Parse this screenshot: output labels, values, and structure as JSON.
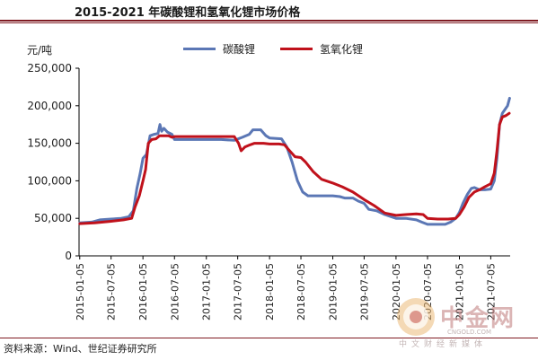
{
  "header": {
    "title": "2015-2021 年碳酸锂和氢氧化锂市场价格"
  },
  "footer": {
    "source": "资料来源：Wind、世纪证券研究所"
  },
  "watermark": {
    "brand": "中金网",
    "domain": "CNGOLD.COM",
    "slogan": "中文财经新媒体"
  },
  "colors": {
    "accent": "#7f1b22",
    "carbonate": "#5b77b5",
    "hydroxide": "#c0111b"
  },
  "chart_data": {
    "type": "line",
    "ylabel": "元/吨",
    "ylim": [
      0,
      250000
    ],
    "yticks": [
      0,
      50000,
      100000,
      150000,
      200000,
      250000
    ],
    "ytick_labels": [
      "0",
      "50,000",
      "100,000",
      "150,000",
      "200,000",
      "250,000"
    ],
    "x_range": [
      "2015-01-01",
      "2021-10-25"
    ],
    "xticks": [
      "2015-01-05",
      "2015-07-05",
      "2016-01-05",
      "2016-07-05",
      "2017-01-05",
      "2017-07-05",
      "2018-01-05",
      "2018-07-05",
      "2019-01-05",
      "2019-07-05",
      "2020-01-05",
      "2020-07-05",
      "2021-01-05",
      "2021-07-05"
    ],
    "grid": false,
    "legend_position": "top",
    "series": [
      {
        "name": "碳酸锂",
        "color": "#5b77b5",
        "points": [
          [
            "2015-01-05",
            44000
          ],
          [
            "2015-03-15",
            45000
          ],
          [
            "2015-05-01",
            48000
          ],
          [
            "2015-07-05",
            49000
          ],
          [
            "2015-09-01",
            50000
          ],
          [
            "2015-10-15",
            52000
          ],
          [
            "2015-11-10",
            60000
          ],
          [
            "2015-12-01",
            90000
          ],
          [
            "2015-12-20",
            110000
          ],
          [
            "2016-01-05",
            130000
          ],
          [
            "2016-01-25",
            135000
          ],
          [
            "2016-02-15",
            160000
          ],
          [
            "2016-03-10",
            162000
          ],
          [
            "2016-04-01",
            163000
          ],
          [
            "2016-04-12",
            175000
          ],
          [
            "2016-04-22",
            166000
          ],
          [
            "2016-05-05",
            170000
          ],
          [
            "2016-05-25",
            165000
          ],
          [
            "2016-06-20",
            162000
          ],
          [
            "2016-07-05",
            155000
          ],
          [
            "2016-09-01",
            155000
          ],
          [
            "2017-01-05",
            155000
          ],
          [
            "2017-04-01",
            155000
          ],
          [
            "2017-06-15",
            154000
          ],
          [
            "2017-08-01",
            158000
          ],
          [
            "2017-09-10",
            162000
          ],
          [
            "2017-10-01",
            168000
          ],
          [
            "2017-11-15",
            168000
          ],
          [
            "2017-12-15",
            160000
          ],
          [
            "2018-01-05",
            157000
          ],
          [
            "2018-03-15",
            156000
          ],
          [
            "2018-04-15",
            145000
          ],
          [
            "2018-05-15",
            125000
          ],
          [
            "2018-06-15",
            100000
          ],
          [
            "2018-07-15",
            85000
          ],
          [
            "2018-08-15",
            80000
          ],
          [
            "2018-10-01",
            80000
          ],
          [
            "2019-01-05",
            80000
          ],
          [
            "2019-02-15",
            79000
          ],
          [
            "2019-03-15",
            77000
          ],
          [
            "2019-05-01",
            77000
          ],
          [
            "2019-06-01",
            73000
          ],
          [
            "2019-07-05",
            70000
          ],
          [
            "2019-08-01",
            62000
          ],
          [
            "2019-09-15",
            60000
          ],
          [
            "2019-11-01",
            55000
          ],
          [
            "2020-01-05",
            50000
          ],
          [
            "2020-03-01",
            50000
          ],
          [
            "2020-05-01",
            48000
          ],
          [
            "2020-06-01",
            45000
          ],
          [
            "2020-07-05",
            42000
          ],
          [
            "2020-09-01",
            42000
          ],
          [
            "2020-10-15",
            42000
          ],
          [
            "2020-11-15",
            45000
          ],
          [
            "2020-12-15",
            50000
          ],
          [
            "2021-01-05",
            58000
          ],
          [
            "2021-01-25",
            70000
          ],
          [
            "2021-02-20",
            82000
          ],
          [
            "2021-03-15",
            90000
          ],
          [
            "2021-04-01",
            91000
          ],
          [
            "2021-05-01",
            88000
          ],
          [
            "2021-06-01",
            88000
          ],
          [
            "2021-07-05",
            89000
          ],
          [
            "2021-07-25",
            100000
          ],
          [
            "2021-08-10",
            130000
          ],
          [
            "2021-08-25",
            175000
          ],
          [
            "2021-09-10",
            190000
          ],
          [
            "2021-09-25",
            195000
          ],
          [
            "2021-10-10",
            200000
          ],
          [
            "2021-10-22",
            210000
          ]
        ]
      },
      {
        "name": "氢氧化锂",
        "color": "#c0111b",
        "points": [
          [
            "2015-01-05",
            43000
          ],
          [
            "2015-04-01",
            44000
          ],
          [
            "2015-07-05",
            46000
          ],
          [
            "2015-09-15",
            48000
          ],
          [
            "2015-11-01",
            50000
          ],
          [
            "2015-11-20",
            65000
          ],
          [
            "2015-12-15",
            80000
          ],
          [
            "2016-01-05",
            100000
          ],
          [
            "2016-01-20",
            115000
          ],
          [
            "2016-02-05",
            150000
          ],
          [
            "2016-02-25",
            155000
          ],
          [
            "2016-03-20",
            156000
          ],
          [
            "2016-04-10",
            160000
          ],
          [
            "2016-05-05",
            160000
          ],
          [
            "2016-06-01",
            160000
          ],
          [
            "2016-06-20",
            158000
          ],
          [
            "2016-07-05",
            159000
          ],
          [
            "2016-09-01",
            159000
          ],
          [
            "2017-01-05",
            159000
          ],
          [
            "2017-04-01",
            159000
          ],
          [
            "2017-06-15",
            159000
          ],
          [
            "2017-07-10",
            150000
          ],
          [
            "2017-07-25",
            140000
          ],
          [
            "2017-08-15",
            145000
          ],
          [
            "2017-09-15",
            148000
          ],
          [
            "2017-10-10",
            150000
          ],
          [
            "2017-12-01",
            150000
          ],
          [
            "2018-01-05",
            149000
          ],
          [
            "2018-03-01",
            149000
          ],
          [
            "2018-04-01",
            148000
          ],
          [
            "2018-05-01",
            140000
          ],
          [
            "2018-06-01",
            132000
          ],
          [
            "2018-07-05",
            131000
          ],
          [
            "2018-08-01",
            125000
          ],
          [
            "2018-09-15",
            112000
          ],
          [
            "2018-11-01",
            102000
          ],
          [
            "2019-01-05",
            97000
          ],
          [
            "2019-03-01",
            92000
          ],
          [
            "2019-05-01",
            85000
          ],
          [
            "2019-07-05",
            75000
          ],
          [
            "2019-09-01",
            67000
          ],
          [
            "2019-11-01",
            57000
          ],
          [
            "2020-01-05",
            54000
          ],
          [
            "2020-03-01",
            55000
          ],
          [
            "2020-05-01",
            56000
          ],
          [
            "2020-06-10",
            55000
          ],
          [
            "2020-07-05",
            50000
          ],
          [
            "2020-09-01",
            49000
          ],
          [
            "2020-11-01",
            49000
          ],
          [
            "2020-12-15",
            50000
          ],
          [
            "2021-01-05",
            55000
          ],
          [
            "2021-02-01",
            65000
          ],
          [
            "2021-03-01",
            78000
          ],
          [
            "2021-04-01",
            85000
          ],
          [
            "2021-05-01",
            88000
          ],
          [
            "2021-06-01",
            92000
          ],
          [
            "2021-07-05",
            96000
          ],
          [
            "2021-07-25",
            110000
          ],
          [
            "2021-08-10",
            140000
          ],
          [
            "2021-08-25",
            175000
          ],
          [
            "2021-09-10",
            185000
          ],
          [
            "2021-10-01",
            187000
          ],
          [
            "2021-10-20",
            190000
          ]
        ]
      }
    ]
  }
}
